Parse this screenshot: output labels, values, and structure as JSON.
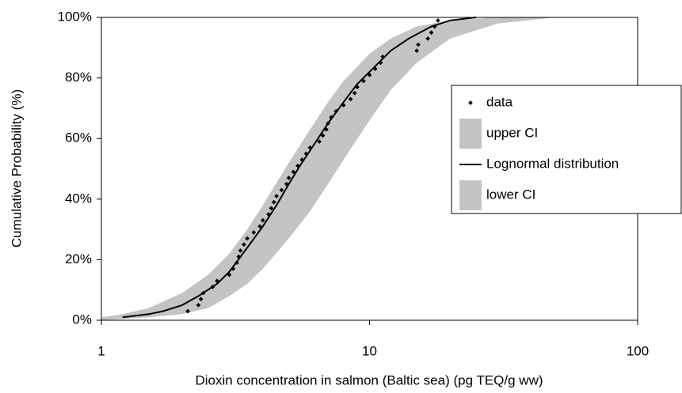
{
  "chart_data": {
    "type": "scatter",
    "x_label": "Dioxin concentration in salmon (Baltic sea) (pg TEQ/g ww)",
    "y_label": "Cumulative Probability (%)",
    "xscale": "log",
    "xlim": [
      1,
      100
    ],
    "xticks": [
      1,
      10,
      100
    ],
    "ylim": [
      0,
      100
    ],
    "yticks": [
      {
        "value": 0,
        "label": "0%"
      },
      {
        "value": 20,
        "label": "20%"
      },
      {
        "value": 40,
        "label": "40%"
      },
      {
        "value": 60,
        "label": "60%"
      },
      {
        "value": 80,
        "label": "80%"
      },
      {
        "value": 100,
        "label": "100%"
      }
    ],
    "legend": "right",
    "series": [
      {
        "name": "data",
        "kind": "points",
        "color": "#000000",
        "x": [
          2.1,
          2.3,
          2.35,
          2.4,
          2.6,
          2.7,
          3.0,
          3.1,
          3.2,
          3.25,
          3.3,
          3.4,
          3.5,
          3.7,
          3.9,
          4.0,
          4.2,
          4.3,
          4.4,
          4.5,
          4.7,
          4.9,
          5.0,
          5.2,
          5.4,
          5.6,
          5.8,
          6.0,
          6.5,
          6.7,
          6.9,
          7.0,
          7.2,
          7.5,
          8.0,
          8.5,
          8.8,
          9.0,
          9.5,
          10.0,
          10.5,
          11.0,
          11.2,
          15.0,
          15.2,
          16.5,
          17.0,
          17.5,
          18.0
        ],
        "values": [
          3,
          5,
          7,
          9,
          11,
          13,
          15,
          17,
          19,
          21,
          23,
          25,
          27,
          29,
          31,
          33,
          35,
          37,
          39,
          41,
          43,
          45,
          47,
          49,
          51,
          53,
          55,
          57,
          59,
          61,
          63,
          65,
          67,
          69,
          71,
          73,
          75,
          77,
          79,
          81,
          83,
          85,
          87,
          89,
          91,
          93,
          95,
          97,
          99
        ]
      },
      {
        "name": "upper CI",
        "kind": "band-upper",
        "color": "#c4c4c4",
        "x": [
          1,
          1.2,
          1.5,
          2,
          2.5,
          3,
          3.5,
          4,
          5,
          6,
          7,
          8,
          10,
          12,
          15,
          20,
          30,
          100
        ],
        "values": [
          1,
          2,
          4,
          9,
          15,
          22,
          30,
          38,
          52,
          63,
          72,
          79,
          88,
          93,
          97,
          99,
          100,
          100
        ]
      },
      {
        "name": "Lognormal distribution",
        "kind": "line",
        "color": "#000000",
        "x": [
          1.2,
          1.5,
          1.7,
          2,
          2.3,
          2.7,
          3,
          3.5,
          4,
          4.5,
          5,
          5.5,
          6,
          7,
          8,
          9,
          10,
          12,
          14,
          17,
          20,
          25
        ],
        "values": [
          1,
          2,
          3,
          5,
          8,
          12,
          16,
          24,
          31,
          38,
          45,
          51,
          56,
          65,
          72,
          78,
          82,
          89,
          93,
          97,
          99,
          100
        ]
      },
      {
        "name": "lower CI",
        "kind": "band-lower",
        "color": "#ffffff",
        "x": [
          1,
          1.5,
          2,
          2.5,
          3,
          3.5,
          4,
          5,
          6,
          7,
          8,
          10,
          12,
          15,
          20,
          30,
          50,
          100
        ],
        "values": [
          0,
          1,
          2,
          4,
          8,
          12,
          17,
          27,
          36,
          45,
          53,
          66,
          76,
          85,
          93,
          98,
          100,
          100
        ]
      }
    ]
  }
}
